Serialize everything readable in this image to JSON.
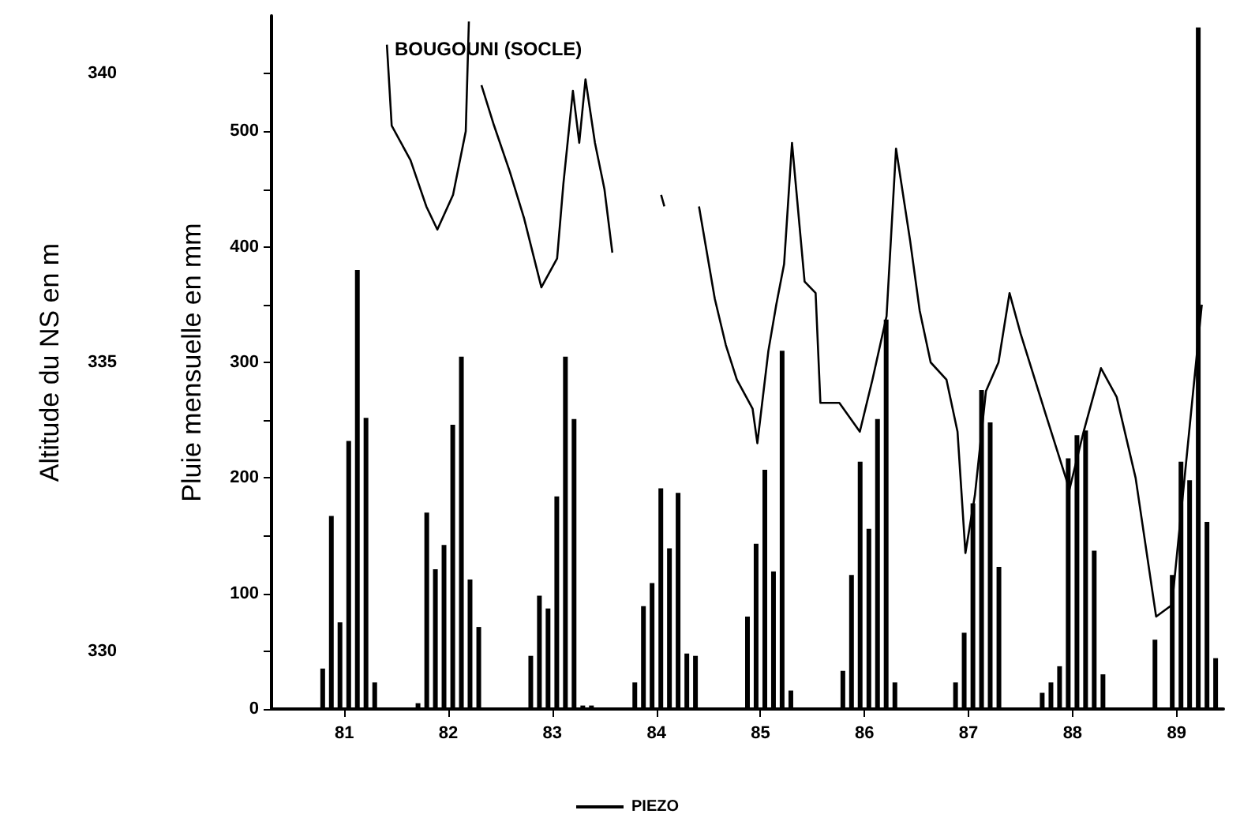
{
  "chart_data": {
    "type": "bar",
    "title": "BOUGOUNI (SOCLE)",
    "ylabel": "Pluie mensuelle en mm",
    "y2label": "Altitude du NS en m",
    "xlim": [
      80.8,
      89.95
    ],
    "xticks": [
      {
        "value": 81.5,
        "label": "81"
      },
      {
        "value": 82.5,
        "label": "82"
      },
      {
        "value": 83.5,
        "label": "83"
      },
      {
        "value": 84.5,
        "label": "84"
      },
      {
        "value": 85.5,
        "label": "85"
      },
      {
        "value": 86.5,
        "label": "86"
      },
      {
        "value": 87.5,
        "label": "87"
      },
      {
        "value": 88.5,
        "label": "88"
      },
      {
        "value": 89.5,
        "label": "89"
      }
    ],
    "ylim": [
      0,
      600
    ],
    "yticks": [
      0,
      {
        "value": 50,
        "label": null
      },
      100,
      {
        "value": 150,
        "label": null
      },
      200,
      {
        "value": 250,
        "label": null
      },
      300,
      {
        "value": 350,
        "label": null
      },
      400,
      {
        "value": 450,
        "label": null
      },
      500,
      {
        "value": 550,
        "label": null
      }
    ],
    "y2lim": [
      329,
      341
    ],
    "y2ticks": [
      330,
      335,
      340
    ],
    "grid": false,
    "legend": "bottom",
    "marker": "none",
    "series": [
      {
        "color": "#000000",
        "x": [
          81.292,
          81.375,
          81.458,
          81.542,
          81.625,
          81.708,
          81.792,
          82.208,
          82.292,
          82.375,
          82.458,
          82.542,
          82.625,
          82.708,
          82.792,
          83.292,
          83.375,
          83.458,
          83.542,
          83.625,
          83.708,
          83.792,
          83.875,
          84.292,
          84.375,
          84.458,
          84.542,
          84.625,
          84.708,
          84.792,
          84.875,
          85.375,
          85.458,
          85.542,
          85.625,
          85.708,
          85.792,
          86.292,
          86.375,
          86.458,
          86.542,
          86.625,
          86.708,
          86.792,
          87.375,
          87.458,
          87.542,
          87.625,
          87.708,
          87.792,
          88.208,
          88.292,
          88.375,
          88.458,
          88.542,
          88.625,
          88.708,
          88.792,
          89.292,
          89.458,
          89.542,
          89.625,
          89.708,
          89.792,
          89.875
        ],
        "values": [
          35,
          167,
          75,
          232,
          380,
          252,
          23,
          5,
          170,
          121,
          142,
          246,
          305,
          112,
          71,
          46,
          98,
          87,
          184,
          305,
          251,
          3,
          3,
          23,
          89,
          109,
          191,
          139,
          187,
          48,
          46,
          80,
          143,
          207,
          119,
          310,
          16,
          33,
          116,
          214,
          156,
          251,
          337,
          23,
          23,
          66,
          178,
          276,
          248,
          123,
          14,
          23,
          37,
          217,
          237,
          241,
          137,
          30,
          60,
          116,
          214,
          198,
          590,
          162,
          44
        ]
      },
      {
        "type": "line",
        "name": "PIEZO",
        "axis": "y2",
        "color": "#000000",
        "x": [
          81.909,
          81.955,
          82.136,
          82.288,
          82.394,
          82.545,
          82.667,
          82.697,
          82.73,
          82.818,
          82.939,
          83.091,
          83.227,
          83.394,
          83.545,
          83.606,
          83.697,
          83.758,
          83.818,
          83.909,
          84.0,
          84.076,
          84.2,
          84.545,
          84.576,
          84.8,
          84.909,
          85.061,
          85.167,
          85.273,
          85.424,
          85.47,
          85.576,
          85.652,
          85.727,
          85.803,
          85.924,
          86.03,
          86.076,
          86.258,
          86.455,
          86.576,
          86.712,
          86.803,
          86.939,
          87.03,
          87.136,
          87.288,
          87.394,
          87.47,
          87.561,
          87.667,
          87.788,
          87.894,
          88.0,
          88.242,
          88.47,
          88.606,
          88.773,
          88.924,
          89.106,
          89.303,
          89.455,
          89.742
        ],
        "values": [
          340.5,
          339.1,
          338.5,
          337.7,
          337.3,
          337.9,
          339.0,
          340.9,
          null,
          339.8,
          339.1,
          338.3,
          337.5,
          336.3,
          336.8,
          338.1,
          339.7,
          338.8,
          339.9,
          338.8,
          338.0,
          336.9,
          null,
          337.9,
          337.7,
          null,
          337.7,
          336.1,
          335.3,
          334.7,
          334.2,
          333.6,
          335.2,
          336.0,
          336.7,
          338.8,
          336.4,
          336.2,
          334.3,
          334.3,
          333.8,
          334.7,
          335.8,
          338.7,
          337.1,
          335.9,
          335.0,
          334.7,
          333.8,
          331.7,
          332.7,
          334.5,
          335.0,
          336.2,
          335.5,
          334.1,
          332.8,
          333.8,
          334.9,
          334.4,
          333.0,
          330.6,
          330.8,
          336.0
        ]
      }
    ]
  }
}
